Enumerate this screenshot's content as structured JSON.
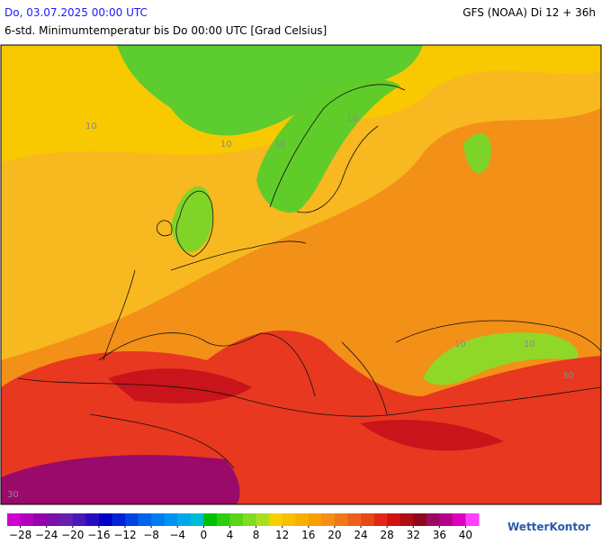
{
  "header": {
    "title": "Do, 03.07.2025 00:00 UTC",
    "model": "GFS (NOAA) Di 12 + 36h",
    "subtitle": "6-std. Minimumtemperatur bis Do 00:00 UTC [Grad Celsius]"
  },
  "map": {
    "contour_labels": [
      "10",
      "10",
      "10",
      "10",
      "10",
      "10",
      "30",
      "30"
    ]
  },
  "colorbar": {
    "range": [
      -30,
      42
    ],
    "step": 2,
    "colors": [
      "#d000d0",
      "#b400bc",
      "#9800ac",
      "#7c10a8",
      "#6420b0",
      "#4818b8",
      "#2a0cc0",
      "#0000c8",
      "#0022d8",
      "#0044e2",
      "#0064ea",
      "#007cf0",
      "#0094f0",
      "#00aaea",
      "#00bcd8",
      "#00c000",
      "#30cc10",
      "#5cd418",
      "#80dc20",
      "#a8e020",
      "#f8d000",
      "#f8c000",
      "#f8b000",
      "#f8a000",
      "#f49018",
      "#f07818",
      "#ec6018",
      "#e84818",
      "#e42818",
      "#d01414",
      "#b00c14",
      "#900820",
      "#9a0a60",
      "#b8008c",
      "#e000c0",
      "#ff40ff"
    ],
    "ticks": [
      {
        "value": -28,
        "label": "−28"
      },
      {
        "value": -24,
        "label": "−24"
      },
      {
        "value": -20,
        "label": "−20"
      },
      {
        "value": -16,
        "label": "−16"
      },
      {
        "value": -12,
        "label": "−12"
      },
      {
        "value": -8,
        "label": "−8"
      },
      {
        "value": -4,
        "label": "−4"
      },
      0,
      4,
      8,
      12,
      16,
      20,
      24,
      28,
      32,
      36,
      40
    ]
  },
  "logo": "WetterKontor"
}
